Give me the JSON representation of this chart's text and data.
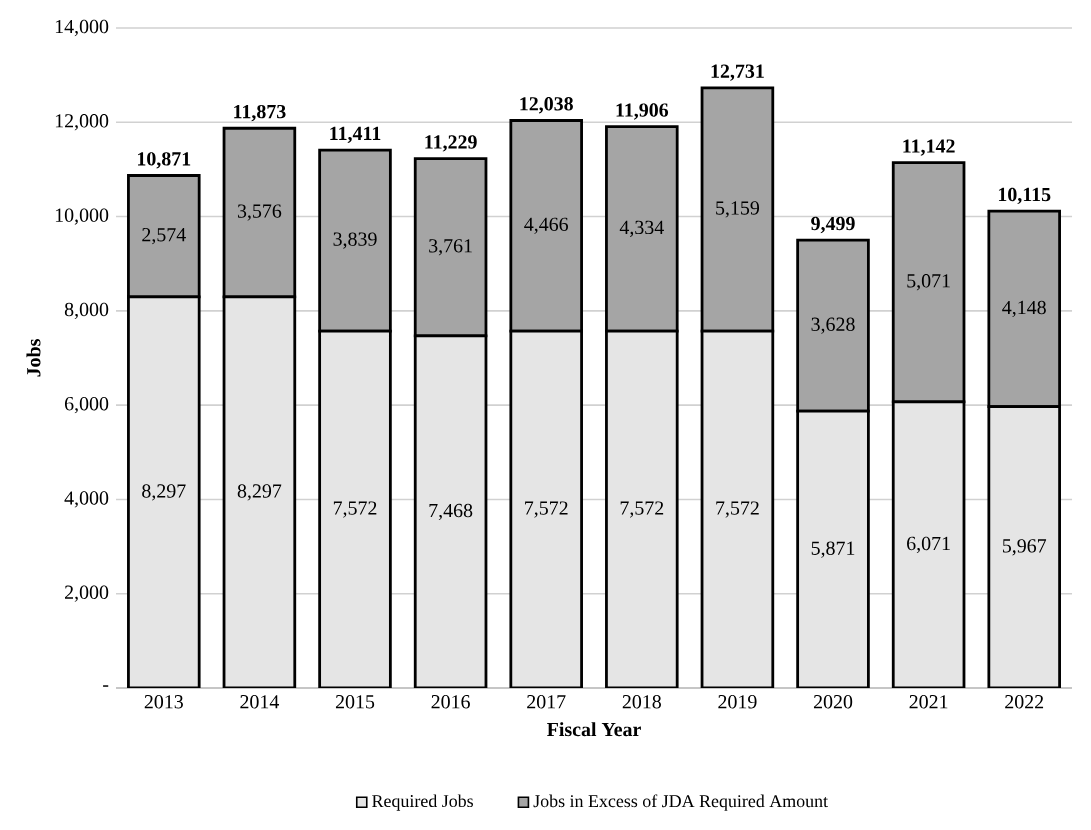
{
  "chart_data": {
    "type": "bar",
    "stacked": true,
    "xlabel": "Fiscal Year",
    "ylabel": "Jobs",
    "categories": [
      "2013",
      "2014",
      "2015",
      "2016",
      "2017",
      "2018",
      "2019",
      "2020",
      "2021",
      "2022"
    ],
    "series": [
      {
        "name": "Required Jobs",
        "color": "#e5e5e5",
        "values": [
          8297,
          8297,
          7572,
          7468,
          7572,
          7572,
          7572,
          5871,
          6071,
          5967
        ],
        "value_labels": [
          "8,297",
          "8,297",
          "7,572",
          "7,468",
          "7,572",
          "7,572",
          "7,572",
          "5,871",
          "6,071",
          "5,967"
        ]
      },
      {
        "name": "Jobs in Excess of JDA Required Amount",
        "color": "#a5a5a5",
        "values": [
          2574,
          3576,
          3839,
          3761,
          4466,
          4334,
          5159,
          3628,
          5071,
          4148
        ],
        "value_labels": [
          "2,574",
          "3,576",
          "3,839",
          "3,761",
          "4,466",
          "4,334",
          "5,159",
          "3,628",
          "5,071",
          "4,148"
        ]
      }
    ],
    "totals": [
      "10,871",
      "11,873",
      "11,411",
      "11,229",
      "12,038",
      "11,906",
      "12,731",
      "9,499",
      "11,142",
      "10,115"
    ],
    "ylim": [
      0,
      14000
    ],
    "yticks": [
      {
        "value": 0,
        "label": "-"
      },
      {
        "value": 2000,
        "label": "2,000"
      },
      {
        "value": 4000,
        "label": "4,000"
      },
      {
        "value": 6000,
        "label": "6,000"
      },
      {
        "value": 8000,
        "label": "8,000"
      },
      {
        "value": 10000,
        "label": "10,000"
      },
      {
        "value": 12000,
        "label": "12,000"
      },
      {
        "value": 14000,
        "label": "14,000"
      }
    ],
    "grid": "y",
    "legend": "bottom"
  }
}
